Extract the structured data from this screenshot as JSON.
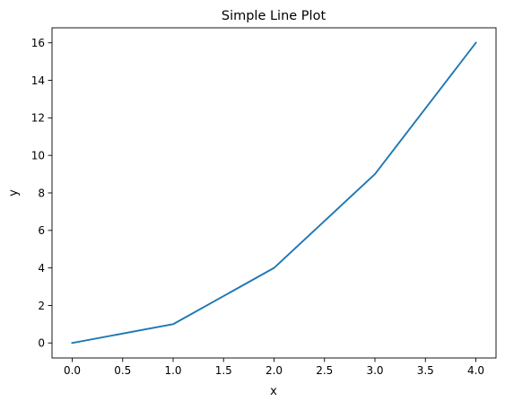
{
  "chart_data": {
    "type": "line",
    "title": "Simple Line Plot",
    "xlabel": "x",
    "ylabel": "y",
    "xlim": [
      -0.2,
      4.2
    ],
    "ylim": [
      -0.8,
      16.8
    ],
    "x_ticks": [
      0.0,
      0.5,
      1.0,
      1.5,
      2.0,
      2.5,
      3.0,
      3.5,
      4.0
    ],
    "x_tick_labels": [
      "0.0",
      "0.5",
      "1.0",
      "1.5",
      "2.0",
      "2.5",
      "3.0",
      "3.5",
      "4.0"
    ],
    "y_ticks": [
      0,
      2,
      4,
      6,
      8,
      10,
      12,
      14,
      16
    ],
    "y_tick_labels": [
      "0",
      "2",
      "4",
      "6",
      "8",
      "10",
      "12",
      "14",
      "16"
    ],
    "grid": false,
    "legend": false,
    "series": [
      {
        "x": [
          0,
          1,
          2,
          3,
          4
        ],
        "y": [
          0,
          1,
          4,
          9,
          16
        ],
        "color": "#1f77b4"
      }
    ]
  }
}
